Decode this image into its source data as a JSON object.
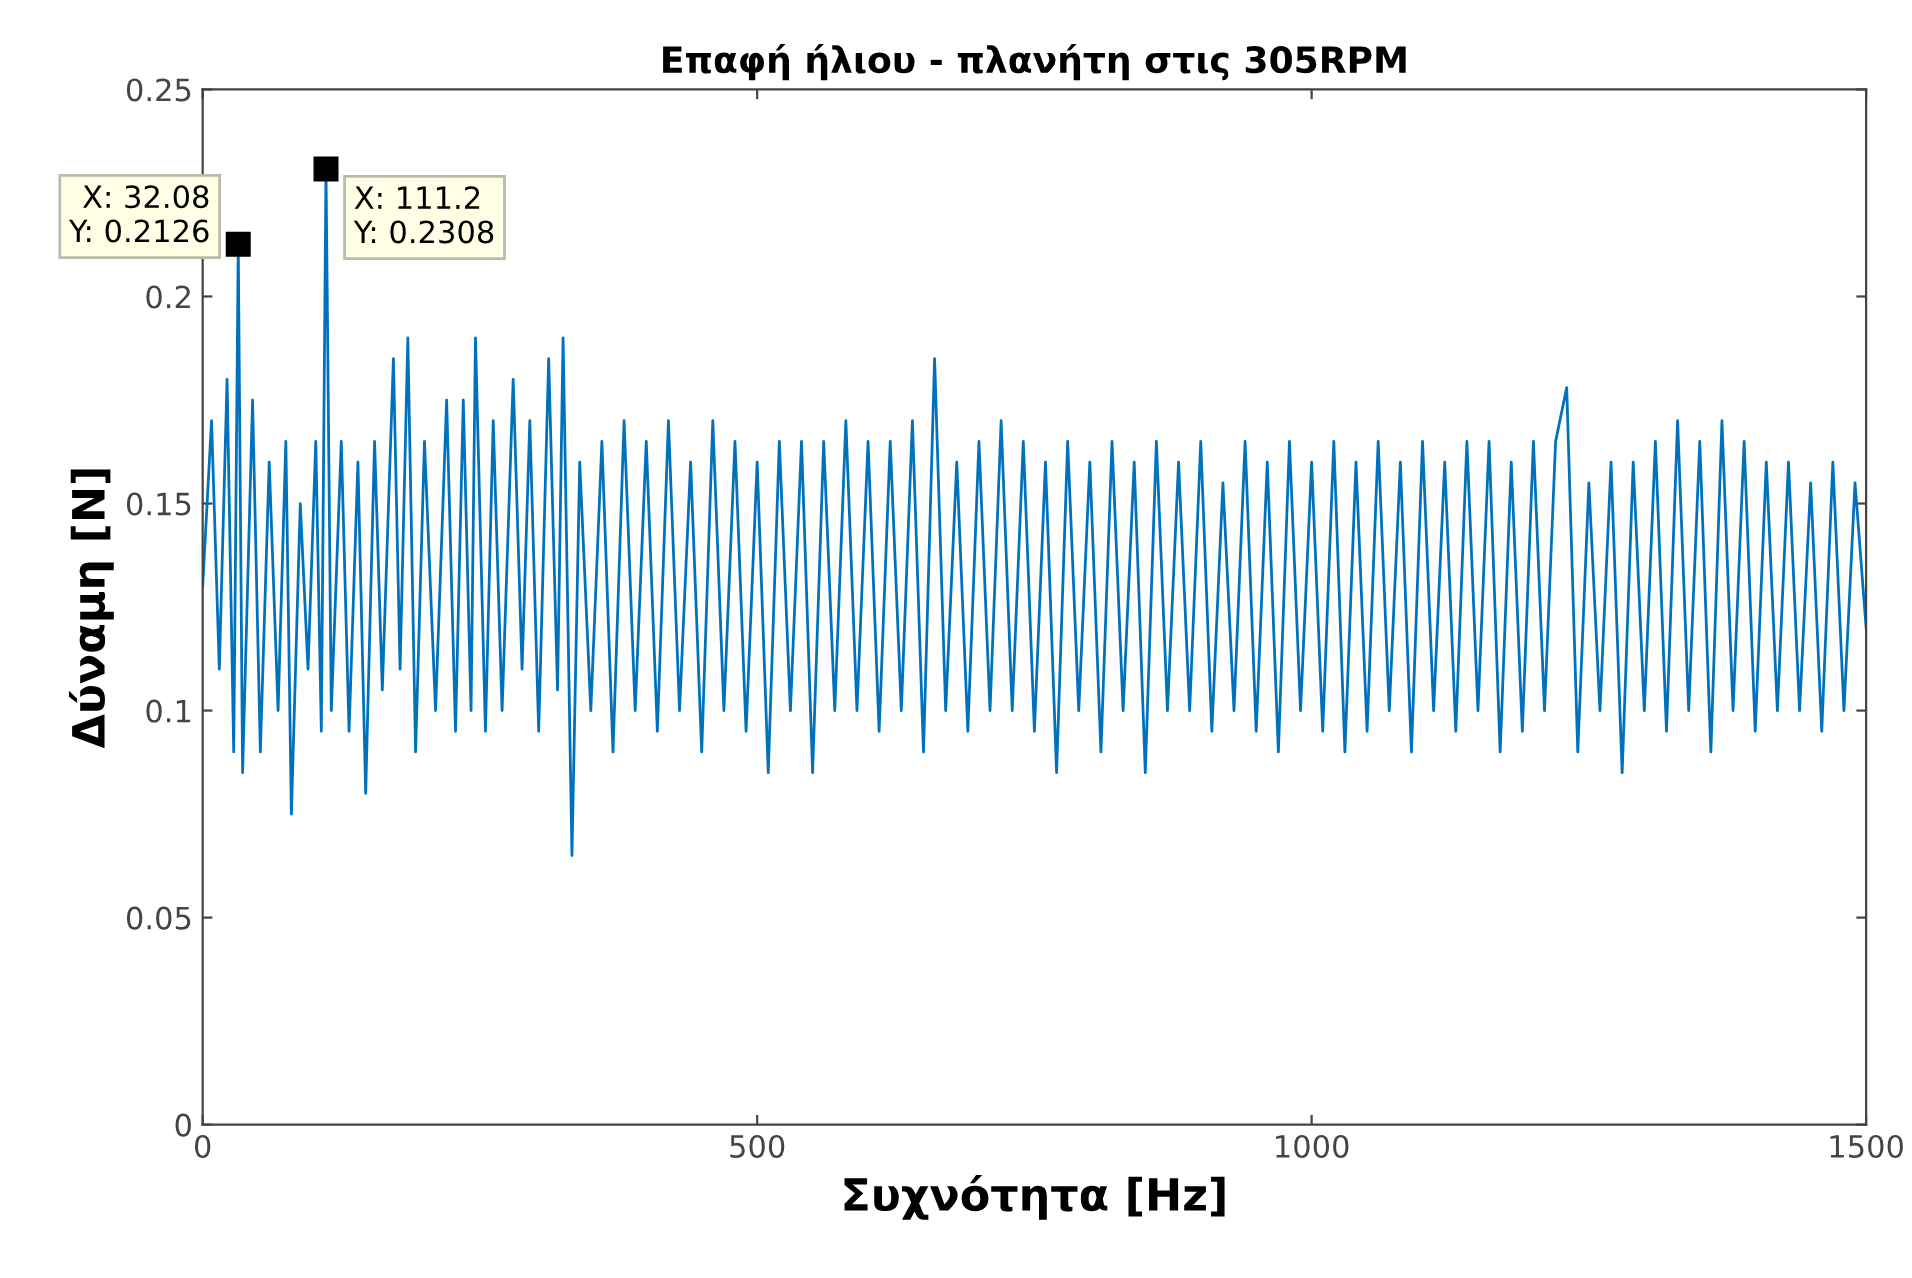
{
  "chart_data": {
    "type": "line",
    "title": "Επαφή ήλιου - πλανήτη στις 305RPM",
    "xlabel": "Συχνότητα [Hz]",
    "ylabel": "Δύναμη [N]",
    "xlim": [
      0,
      1500
    ],
    "ylim": [
      0,
      0.25
    ],
    "xticks": [
      0,
      500,
      1000,
      1500
    ],
    "yticks": [
      0,
      0.05,
      0.1,
      0.15,
      0.2,
      0.25
    ],
    "grid": false,
    "marker": "none",
    "line_style": "solid",
    "annotations": [
      {
        "text": "X: 32.08\nY: 0.2126",
        "x": 32.08,
        "y": 0.2126
      },
      {
        "text": "X: 111.2\nY: 0.2308",
        "x": 111.2,
        "y": 0.2308
      }
    ],
    "series": [
      {
        "color": "#0072bd",
        "x": [
          0,
          8,
          15,
          22,
          28,
          32.08,
          36,
          45,
          52,
          60,
          68,
          75,
          80,
          88,
          95,
          102,
          107,
          111.2,
          116,
          125,
          132,
          140,
          147,
          155,
          162,
          172,
          178,
          185,
          192,
          200,
          210,
          220,
          228,
          235,
          242,
          246,
          255,
          262,
          270,
          280,
          288,
          295,
          303,
          312,
          320,
          325,
          333,
          340,
          350,
          360,
          370,
          380,
          390,
          400,
          410,
          420,
          430,
          440,
          450,
          460,
          470,
          480,
          490,
          500,
          510,
          520,
          530,
          540,
          550,
          560,
          570,
          580,
          590,
          600,
          610,
          620,
          630,
          640,
          650,
          660,
          670,
          680,
          690,
          700,
          710,
          720,
          730,
          740,
          750,
          760,
          770,
          780,
          790,
          800,
          810,
          820,
          830,
          840,
          850,
          860,
          870,
          880,
          890,
          900,
          910,
          920,
          930,
          940,
          950,
          960,
          970,
          980,
          990,
          1000,
          1010,
          1020,
          1030,
          1040,
          1050,
          1060,
          1070,
          1080,
          1090,
          1100,
          1110,
          1120,
          1130,
          1140,
          1150,
          1160,
          1170,
          1180,
          1190,
          1200,
          1210,
          1220,
          1230,
          1240,
          1250,
          1260,
          1270,
          1280,
          1290,
          1300,
          1310,
          1320,
          1330,
          1340,
          1350,
          1360,
          1370,
          1380,
          1390,
          1400,
          1410,
          1420,
          1430,
          1440,
          1450,
          1460,
          1470,
          1480,
          1490,
          1500
        ],
        "values": [
          0.13,
          0.17,
          0.11,
          0.18,
          0.09,
          0.2126,
          0.085,
          0.175,
          0.09,
          0.16,
          0.1,
          0.165,
          0.075,
          0.15,
          0.11,
          0.165,
          0.095,
          0.2308,
          0.1,
          0.165,
          0.095,
          0.16,
          0.08,
          0.165,
          0.105,
          0.185,
          0.11,
          0.19,
          0.09,
          0.165,
          0.1,
          0.175,
          0.095,
          0.175,
          0.1,
          0.19,
          0.095,
          0.17,
          0.1,
          0.18,
          0.11,
          0.17,
          0.095,
          0.185,
          0.105,
          0.19,
          0.065,
          0.16,
          0.1,
          0.165,
          0.09,
          0.17,
          0.1,
          0.165,
          0.095,
          0.17,
          0.1,
          0.16,
          0.09,
          0.17,
          0.1,
          0.165,
          0.095,
          0.16,
          0.085,
          0.165,
          0.1,
          0.165,
          0.085,
          0.165,
          0.1,
          0.17,
          0.1,
          0.165,
          0.095,
          0.165,
          0.1,
          0.17,
          0.09,
          0.185,
          0.1,
          0.16,
          0.095,
          0.165,
          0.1,
          0.17,
          0.1,
          0.165,
          0.095,
          0.16,
          0.085,
          0.165,
          0.1,
          0.16,
          0.09,
          0.165,
          0.1,
          0.16,
          0.085,
          0.165,
          0.1,
          0.16,
          0.1,
          0.165,
          0.095,
          0.155,
          0.1,
          0.165,
          0.095,
          0.16,
          0.09,
          0.165,
          0.1,
          0.16,
          0.095,
          0.165,
          0.09,
          0.16,
          0.095,
          0.165,
          0.1,
          0.16,
          0.09,
          0.165,
          0.1,
          0.16,
          0.095,
          0.165,
          0.1,
          0.165,
          0.09,
          0.16,
          0.095,
          0.165,
          0.1,
          0.165,
          0.178,
          0.09,
          0.155,
          0.1,
          0.16,
          0.085,
          0.16,
          0.1,
          0.165,
          0.095,
          0.17,
          0.1,
          0.165,
          0.09,
          0.17,
          0.1,
          0.165,
          0.095,
          0.16,
          0.1,
          0.16,
          0.1,
          0.155,
          0.095,
          0.16,
          0.1,
          0.155,
          0.12
        ]
      }
    ]
  }
}
